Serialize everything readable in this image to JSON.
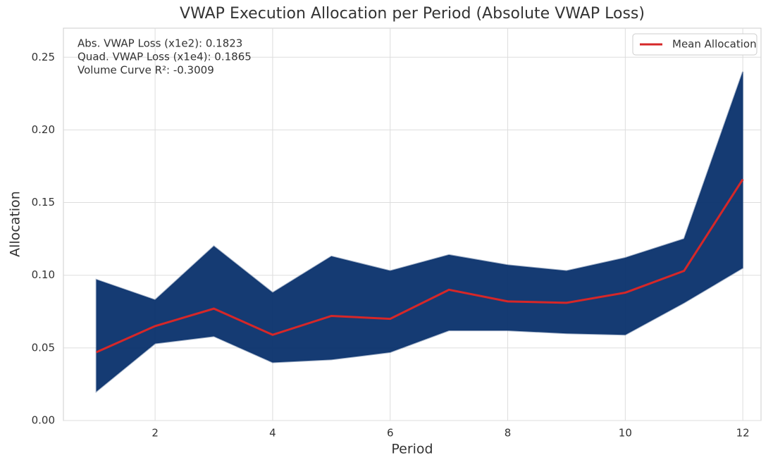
{
  "chart_data": {
    "type": "line",
    "title": "VWAP Execution Allocation per Period (Absolute VWAP Loss)",
    "xlabel": "Period",
    "ylabel": "Allocation",
    "annotations": [
      "Abs. VWAP Loss (x1e2): 0.1823",
      "Quad. VWAP Loss (x1e4): 0.1865",
      "Volume Curve R²: -0.3009"
    ],
    "x": [
      1,
      2,
      3,
      4,
      5,
      6,
      7,
      8,
      9,
      10,
      11,
      12
    ],
    "series": [
      {
        "name": "Mean Allocation",
        "color": "#d62728",
        "values": [
          0.047,
          0.065,
          0.077,
          0.059,
          0.072,
          0.07,
          0.09,
          0.082,
          0.081,
          0.088,
          0.103,
          0.166
        ]
      }
    ],
    "envelope": {
      "color": "#08306b",
      "lower": [
        0.02,
        0.053,
        0.058,
        0.04,
        0.042,
        0.047,
        0.062,
        0.062,
        0.06,
        0.059,
        0.081,
        0.105
      ],
      "upper": [
        0.097,
        0.083,
        0.12,
        0.088,
        0.113,
        0.103,
        0.114,
        0.107,
        0.103,
        0.112,
        0.125,
        0.24
      ]
    },
    "xlim": [
      0.44,
      12.31
    ],
    "ylim": [
      0,
      0.27
    ],
    "xticks": [
      2,
      4,
      6,
      8,
      10,
      12
    ],
    "yticks": [
      {
        "value": 0,
        "label": "0.00"
      },
      {
        "value": 0.05,
        "label": "0.05"
      },
      {
        "value": 0.1,
        "label": "0.10"
      },
      {
        "value": 0.15,
        "label": "0.15"
      },
      {
        "value": 0.2,
        "label": "0.20"
      },
      {
        "value": 0.25,
        "label": "0.25"
      }
    ],
    "grid": true,
    "legend": "upper right"
  }
}
